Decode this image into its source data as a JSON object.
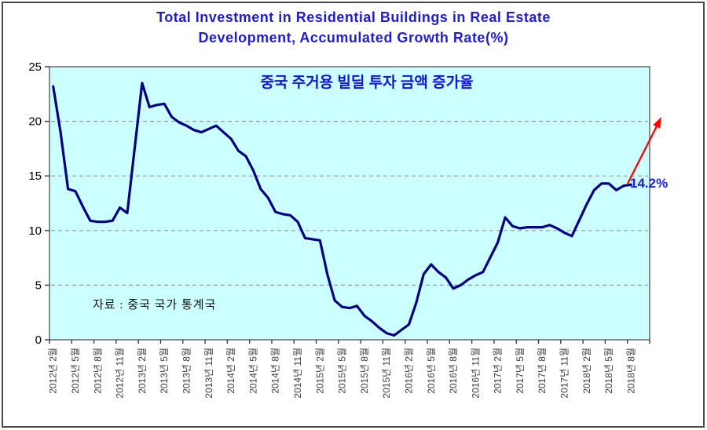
{
  "window": {
    "background": "#ffffff",
    "border_color": "#4a4a4a"
  },
  "title": {
    "line1": "Total Investment in Residential Buildings in Real Estate",
    "line2": "Development, Accumulated Growth Rate(%)",
    "color": "#1e1ecd"
  },
  "chart_data": {
    "type": "line",
    "title": "Total Investment in Residential Buildings in Real Estate Development, Accumulated Growth Rate(%)",
    "subtitle": "중국 주거용 빌딜 투자 금액 증가율",
    "source_note": "자료 : 중국 국가 통계국",
    "ylabel": "",
    "xlabel": "",
    "ylim": [
      0,
      25
    ],
    "y_ticks": [
      0,
      5,
      10,
      15,
      20,
      25
    ],
    "grid": "horizontal dashed gray at 5,10,15,20",
    "legend": "none",
    "plot_bg_color": "#ccffff",
    "line_color": "#000080",
    "x_axis_note": "monthly accumulated data, January omitted each year",
    "x_tick_labels": [
      "2012년 2월",
      "2012년 5월",
      "2012년 8월",
      "2012년 11월",
      "2013년 2월",
      "2013년 5월",
      "2013년 8월",
      "2013년 11월",
      "2014년 2월",
      "2014년 5월",
      "2014년 8월",
      "2014년 11월",
      "2015년 2월",
      "2015년 5월",
      "2015년 8월",
      "2015년 11월",
      "2016년 2월",
      "2016년 5월",
      "2016년 8월",
      "2016년 11월",
      "2017년 2월",
      "2017년 5월",
      "2017년 8월",
      "2017년 11월",
      "2018년 2월",
      "2018년 5월",
      "2018년 8월"
    ],
    "months": [
      "2012-02",
      "2012-03",
      "2012-04",
      "2012-05",
      "2012-06",
      "2012-07",
      "2012-08",
      "2012-09",
      "2012-10",
      "2012-11",
      "2012-12",
      "2013-02",
      "2013-03",
      "2013-04",
      "2013-05",
      "2013-06",
      "2013-07",
      "2013-08",
      "2013-09",
      "2013-10",
      "2013-11",
      "2013-12",
      "2014-02",
      "2014-03",
      "2014-04",
      "2014-05",
      "2014-06",
      "2014-07",
      "2014-08",
      "2014-09",
      "2014-10",
      "2014-11",
      "2014-12",
      "2015-02",
      "2015-03",
      "2015-04",
      "2015-05",
      "2015-06",
      "2015-07",
      "2015-08",
      "2015-09",
      "2015-10",
      "2015-11",
      "2015-12",
      "2016-02",
      "2016-03",
      "2016-04",
      "2016-05",
      "2016-06",
      "2016-07",
      "2016-08",
      "2016-09",
      "2016-10",
      "2016-11",
      "2016-12",
      "2017-02",
      "2017-03",
      "2017-04",
      "2017-05",
      "2017-06",
      "2017-07",
      "2017-08",
      "2017-09",
      "2017-10",
      "2017-11",
      "2017-12",
      "2018-02",
      "2018-03",
      "2018-04",
      "2018-05",
      "2018-06",
      "2018-07",
      "2018-08"
    ],
    "values": [
      23.2,
      19.0,
      13.8,
      13.6,
      12.2,
      10.9,
      10.8,
      10.8,
      10.9,
      12.1,
      11.6,
      23.5,
      21.3,
      21.5,
      21.6,
      20.4,
      19.9,
      19.6,
      19.2,
      19.0,
      19.3,
      19.6,
      18.4,
      17.3,
      16.8,
      15.5,
      13.8,
      13.0,
      11.7,
      11.5,
      11.4,
      10.8,
      9.3,
      9.1,
      6.0,
      3.6,
      3.0,
      2.9,
      3.1,
      2.2,
      1.7,
      1.1,
      0.6,
      0.4,
      1.4,
      3.4,
      6.0,
      6.9,
      6.2,
      5.7,
      4.7,
      5.0,
      5.5,
      5.9,
      6.2,
      8.9,
      11.2,
      10.4,
      10.2,
      10.3,
      10.3,
      10.3,
      10.5,
      10.2,
      9.8,
      9.5,
      12.4,
      13.7,
      14.3,
      14.3,
      13.7,
      14.1,
      14.2
    ],
    "annotation": {
      "label": "14.2%",
      "label_color": "#1c1ce6",
      "arrow_color": "#ff0000",
      "points_at": "2018-08 last value"
    }
  }
}
